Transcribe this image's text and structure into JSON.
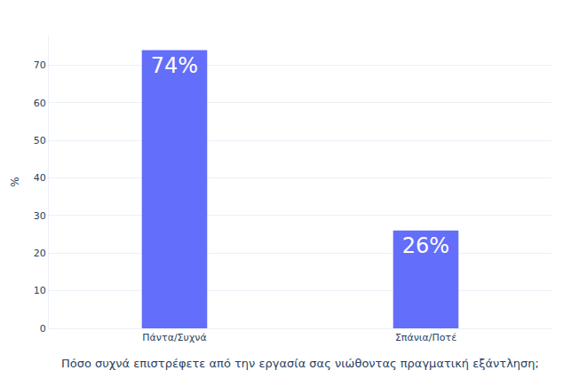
{
  "chart_data": {
    "type": "bar",
    "categories": [
      "Πάντα/Συχνά",
      "Σπάνια/Ποτέ"
    ],
    "values": [
      74,
      26
    ],
    "value_labels": [
      "74%",
      "26%"
    ],
    "data_labels": true,
    "color": "#636efa",
    "x_label": "Πόσο συχνά επιστρέφετε από την εργασία σας νιώθοντας πραγματική εξάντληση;",
    "y_label": "%",
    "ylim": [
      0,
      77.9
    ],
    "yticks": [
      0,
      10,
      20,
      30,
      40,
      50,
      60,
      70
    ],
    "grid": true
  }
}
